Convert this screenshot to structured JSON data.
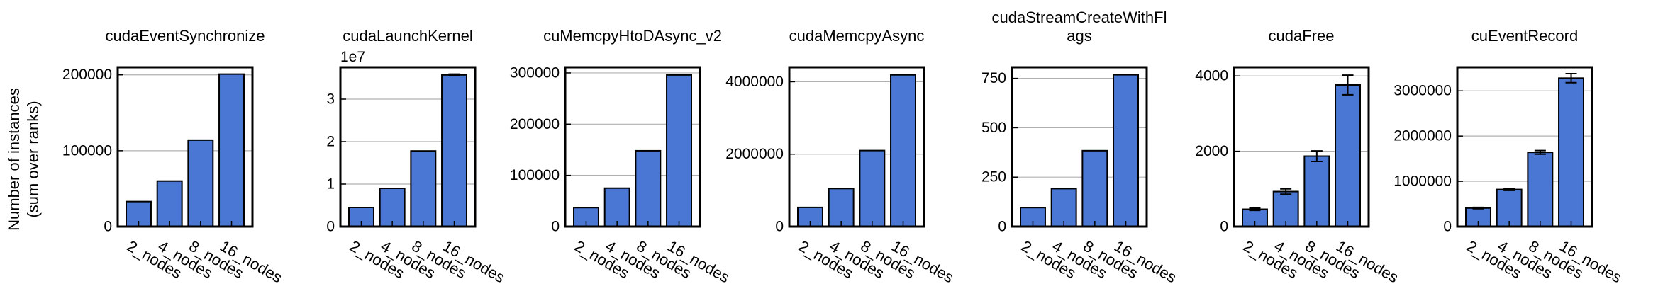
{
  "figure": {
    "ylabel_line1": "Number of instances",
    "ylabel_line2": "(sum over ranks)",
    "bar_color": "#4a77d4",
    "grid_color": "#b0b0b0"
  },
  "chart_data": [
    {
      "type": "bar",
      "title": "cudaEventSynchronize",
      "categories": [
        "2_nodes",
        "4_nodes",
        "8_nodes",
        "16_nodes"
      ],
      "values": [
        33000,
        60000,
        114000,
        201000
      ],
      "errors": [
        0,
        0,
        0,
        0
      ],
      "ylim": [
        0,
        210000
      ],
      "yticks": [
        0,
        100000,
        200000
      ],
      "ytick_labels": [
        "0",
        "100000",
        "200000"
      ],
      "offset_label": "",
      "grid": true
    },
    {
      "type": "bar",
      "title": "cudaLaunchKernel",
      "categories": [
        "2_nodes",
        "4_nodes",
        "8_nodes",
        "16_nodes"
      ],
      "values": [
        0.45,
        0.9,
        1.78,
        3.57
      ],
      "errors": [
        0,
        0,
        0,
        0.02
      ],
      "ylim": [
        0,
        3.75
      ],
      "yticks": [
        0,
        1,
        2,
        3
      ],
      "ytick_labels": [
        "0",
        "1",
        "2",
        "3"
      ],
      "offset_label": "1e7",
      "grid": true
    },
    {
      "type": "bar",
      "title": "cuMemcpyHtoDAsync_v2",
      "categories": [
        "2_nodes",
        "4_nodes",
        "8_nodes",
        "16_nodes"
      ],
      "values": [
        37000,
        75000,
        148000,
        296000
      ],
      "errors": [
        0,
        0,
        0,
        0
      ],
      "ylim": [
        0,
        311000
      ],
      "yticks": [
        0,
        100000,
        200000,
        300000
      ],
      "ytick_labels": [
        "0",
        "100000",
        "200000",
        "300000"
      ],
      "offset_label": "",
      "grid": true
    },
    {
      "type": "bar",
      "title": "cudaMemcpyAsync",
      "categories": [
        "2_nodes",
        "4_nodes",
        "8_nodes",
        "16_nodes"
      ],
      "values": [
        530000,
        1050000,
        2100000,
        4190000
      ],
      "errors": [
        0,
        0,
        0,
        0
      ],
      "ylim": [
        0,
        4400000
      ],
      "yticks": [
        0,
        2000000,
        4000000
      ],
      "ytick_labels": [
        "0",
        "2000000",
        "4000000"
      ],
      "offset_label": "",
      "grid": true
    },
    {
      "type": "bar",
      "title": "cudaStreamCreateWithFl\nags",
      "categories": [
        "2_nodes",
        "4_nodes",
        "8_nodes",
        "16_nodes"
      ],
      "values": [
        96,
        192,
        384,
        768
      ],
      "errors": [
        0,
        0,
        0,
        0
      ],
      "ylim": [
        0,
        806
      ],
      "yticks": [
        0,
        250,
        500,
        750
      ],
      "ytick_labels": [
        "0",
        "250",
        "500",
        "750"
      ],
      "offset_label": "",
      "grid": true
    },
    {
      "type": "bar",
      "title": "cudaFree",
      "categories": [
        "2_nodes",
        "4_nodes",
        "8_nodes",
        "16_nodes"
      ],
      "values": [
        460,
        930,
        1870,
        3760
      ],
      "errors": [
        30,
        70,
        140,
        260
      ],
      "ylim": [
        0,
        4230
      ],
      "yticks": [
        0,
        2000,
        4000
      ],
      "ytick_labels": [
        "0",
        "2000",
        "4000"
      ],
      "offset_label": "",
      "grid": true
    },
    {
      "type": "bar",
      "title": "cuEventRecord",
      "categories": [
        "2_nodes",
        "4_nodes",
        "8_nodes",
        "16_nodes"
      ],
      "values": [
        410000,
        820000,
        1640000,
        3280000
      ],
      "errors": [
        15000,
        20000,
        40000,
        100000
      ],
      "ylim": [
        0,
        3520000
      ],
      "yticks": [
        0,
        1000000,
        2000000,
        3000000
      ],
      "ytick_labels": [
        "0",
        "1000000",
        "2000000",
        "3000000"
      ],
      "offset_label": "",
      "grid": true
    }
  ]
}
